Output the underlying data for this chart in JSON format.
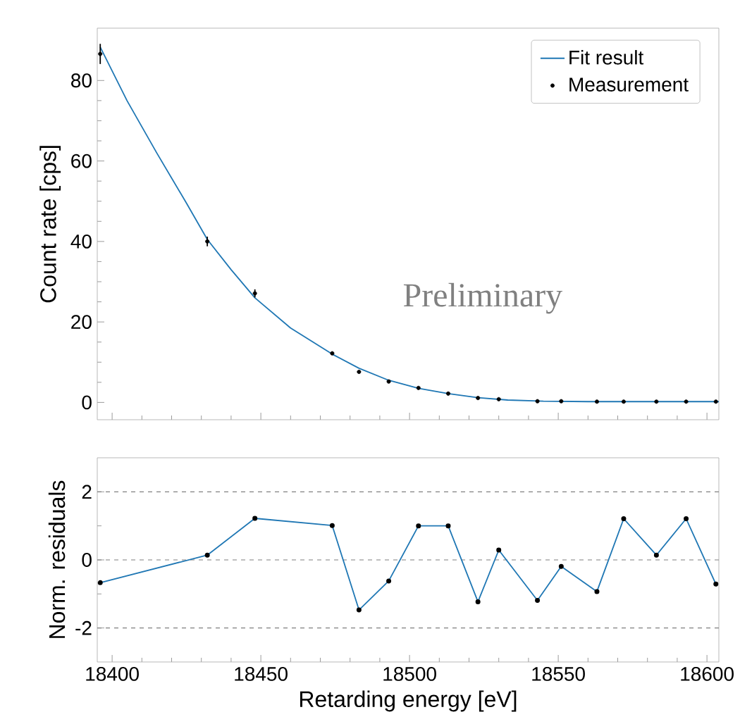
{
  "chart_data": [
    {
      "type": "scatter",
      "ylabel": "Count rate [cps]",
      "xlim": [
        18395,
        18604
      ],
      "xticks": [
        18400,
        18450,
        18500,
        18550,
        18600
      ],
      "ylim": [
        -4.3,
        93
      ],
      "yticks": [
        0,
        20,
        40,
        60,
        80
      ],
      "tick_labels": "y",
      "legend": "top right",
      "annotations": [
        "Preliminary"
      ],
      "x": [
        18396,
        18432,
        18448,
        18474,
        18483,
        18493,
        18503,
        18513,
        18523,
        18530,
        18543,
        18551,
        18563,
        18572,
        18583,
        18593,
        18603
      ],
      "series": [
        {
          "name": "Fit result",
          "type": "line",
          "color": "#1f77b4",
          "marker": "none",
          "x": [
            18396,
            18405,
            18415,
            18425,
            18432,
            18440,
            18448,
            18460,
            18474,
            18483,
            18493,
            18503,
            18513,
            18523,
            18533,
            18545,
            18560,
            18604
          ],
          "values": [
            88.3,
            75,
            62,
            49.5,
            40.5,
            33,
            26,
            18.5,
            12,
            8.5,
            5.5,
            3.5,
            2.2,
            1.2,
            0.6,
            0.3,
            0.2,
            0.2
          ]
        },
        {
          "name": "Measurement",
          "type": "scatter",
          "color": "#000000",
          "marker": "circle",
          "values": [
            86.6,
            40.0,
            27.1,
            12.2,
            7.6,
            5.2,
            3.6,
            2.2,
            1.1,
            0.8,
            0.3,
            0.3,
            0.2,
            0.2,
            0.2,
            0.2,
            0.2
          ],
          "errors": [
            2.5,
            1.2,
            1.0,
            null,
            null,
            null,
            null,
            null,
            null,
            null,
            null,
            null,
            null,
            null,
            null,
            null,
            null
          ]
        }
      ]
    },
    {
      "type": "line",
      "xlabel": "Retarding energy [eV]",
      "ylabel": "Norm. residuals",
      "xlim": [
        18395,
        18604
      ],
      "xticks": [
        18400,
        18450,
        18500,
        18550,
        18600
      ],
      "ylim": [
        -3,
        3
      ],
      "yticks": [
        -2,
        0,
        2
      ],
      "marker": "circle",
      "ref_lines": [
        {
          "axis": "y",
          "value": -2,
          "line_style": "dashed",
          "color": "#808080"
        },
        {
          "axis": "y",
          "value": 0,
          "line_style": "dashed",
          "color": "#808080"
        },
        {
          "axis": "y",
          "value": 2,
          "line_style": "dashed",
          "color": "#808080"
        }
      ],
      "x": [
        18396,
        18432,
        18448,
        18474,
        18483,
        18493,
        18503,
        18513,
        18523,
        18530,
        18543,
        18551,
        18563,
        18572,
        18583,
        18593,
        18603
      ],
      "series": [
        {
          "color": "#1f77b4",
          "values": [
            -0.67,
            0.14,
            1.22,
            1.01,
            -1.47,
            -0.62,
            1.0,
            1.0,
            -1.23,
            0.29,
            -1.19,
            -0.19,
            -0.93,
            1.21,
            0.14,
            1.21,
            -0.71
          ]
        }
      ]
    }
  ]
}
